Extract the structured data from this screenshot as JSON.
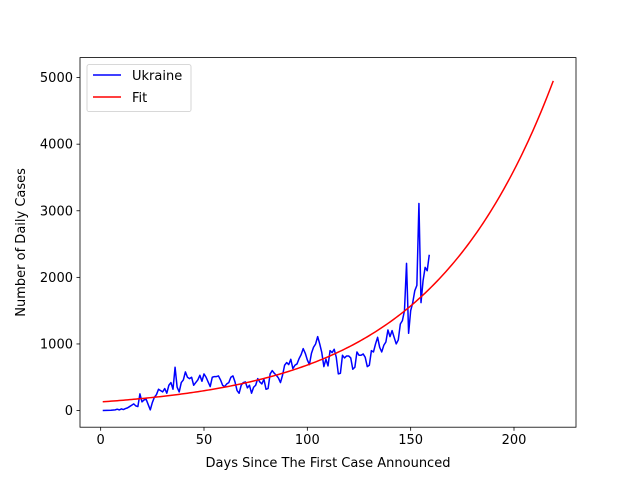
{
  "chart_data": {
    "type": "line",
    "title": "",
    "xlabel": "Days Since The First Case Announced",
    "ylabel": "Number of Daily Cases",
    "xlim": [
      -10,
      230
    ],
    "ylim": [
      -250,
      5300
    ],
    "xticks": [
      0,
      50,
      100,
      150,
      200
    ],
    "yticks": [
      0,
      1000,
      2000,
      3000,
      4000,
      5000
    ],
    "grid": false,
    "legend_position": "top-left",
    "series": [
      {
        "name": "Ukraine",
        "color": "#0000ff",
        "points": [
          [
            1,
            0
          ],
          [
            3,
            2
          ],
          [
            5,
            5
          ],
          [
            7,
            10
          ],
          [
            8,
            20
          ],
          [
            9,
            10
          ],
          [
            10,
            25
          ],
          [
            11,
            15
          ],
          [
            12,
            30
          ],
          [
            13,
            40
          ],
          [
            14,
            60
          ],
          [
            15,
            80
          ],
          [
            16,
            100
          ],
          [
            17,
            70
          ],
          [
            18,
            60
          ],
          [
            19,
            250
          ],
          [
            20,
            130
          ],
          [
            21,
            160
          ],
          [
            22,
            170
          ],
          [
            23,
            90
          ],
          [
            24,
            10
          ],
          [
            25,
            120
          ],
          [
            26,
            200
          ],
          [
            27,
            240
          ],
          [
            28,
            320
          ],
          [
            29,
            300
          ],
          [
            30,
            280
          ],
          [
            31,
            330
          ],
          [
            32,
            260
          ],
          [
            33,
            380
          ],
          [
            34,
            420
          ],
          [
            35,
            320
          ],
          [
            36,
            650
          ],
          [
            37,
            350
          ],
          [
            38,
            280
          ],
          [
            39,
            420
          ],
          [
            40,
            460
          ],
          [
            41,
            580
          ],
          [
            42,
            500
          ],
          [
            43,
            480
          ],
          [
            44,
            500
          ],
          [
            45,
            380
          ],
          [
            46,
            420
          ],
          [
            47,
            460
          ],
          [
            48,
            530
          ],
          [
            49,
            440
          ],
          [
            50,
            550
          ],
          [
            51,
            500
          ],
          [
            52,
            430
          ],
          [
            53,
            360
          ],
          [
            54,
            500
          ],
          [
            55,
            510
          ],
          [
            56,
            510
          ],
          [
            57,
            520
          ],
          [
            58,
            460
          ],
          [
            59,
            380
          ],
          [
            60,
            360
          ],
          [
            61,
            400
          ],
          [
            62,
            420
          ],
          [
            63,
            500
          ],
          [
            64,
            520
          ],
          [
            65,
            430
          ],
          [
            66,
            300
          ],
          [
            67,
            260
          ],
          [
            68,
            380
          ],
          [
            69,
            420
          ],
          [
            70,
            430
          ],
          [
            71,
            340
          ],
          [
            72,
            380
          ],
          [
            73,
            260
          ],
          [
            74,
            350
          ],
          [
            75,
            380
          ],
          [
            76,
            480
          ],
          [
            77,
            430
          ],
          [
            78,
            400
          ],
          [
            79,
            470
          ],
          [
            80,
            320
          ],
          [
            81,
            330
          ],
          [
            82,
            550
          ],
          [
            83,
            600
          ],
          [
            84,
            560
          ],
          [
            85,
            530
          ],
          [
            86,
            490
          ],
          [
            87,
            420
          ],
          [
            88,
            530
          ],
          [
            89,
            680
          ],
          [
            90,
            720
          ],
          [
            91,
            690
          ],
          [
            92,
            770
          ],
          [
            93,
            630
          ],
          [
            94,
            680
          ],
          [
            95,
            700
          ],
          [
            96,
            780
          ],
          [
            97,
            840
          ],
          [
            98,
            930
          ],
          [
            99,
            860
          ],
          [
            100,
            760
          ],
          [
            101,
            690
          ],
          [
            102,
            860
          ],
          [
            103,
            950
          ],
          [
            104,
            1000
          ],
          [
            105,
            1110
          ],
          [
            106,
            1000
          ],
          [
            107,
            870
          ],
          [
            108,
            660
          ],
          [
            109,
            770
          ],
          [
            110,
            670
          ],
          [
            111,
            900
          ],
          [
            112,
            870
          ],
          [
            113,
            920
          ],
          [
            114,
            800
          ],
          [
            115,
            550
          ],
          [
            116,
            560
          ],
          [
            117,
            830
          ],
          [
            118,
            790
          ],
          [
            119,
            820
          ],
          [
            120,
            820
          ],
          [
            121,
            790
          ],
          [
            122,
            620
          ],
          [
            123,
            650
          ],
          [
            124,
            880
          ],
          [
            125,
            830
          ],
          [
            126,
            830
          ],
          [
            127,
            850
          ],
          [
            128,
            800
          ],
          [
            129,
            660
          ],
          [
            130,
            680
          ],
          [
            131,
            900
          ],
          [
            132,
            880
          ],
          [
            133,
            1000
          ],
          [
            134,
            1100
          ],
          [
            135,
            950
          ],
          [
            136,
            880
          ],
          [
            137,
            980
          ],
          [
            138,
            1030
          ],
          [
            139,
            1210
          ],
          [
            140,
            1110
          ],
          [
            141,
            1200
          ],
          [
            142,
            1100
          ],
          [
            143,
            1000
          ],
          [
            144,
            1060
          ],
          [
            145,
            1300
          ],
          [
            146,
            1350
          ],
          [
            147,
            1500
          ],
          [
            148,
            2210
          ],
          [
            149,
            1160
          ],
          [
            150,
            1500
          ],
          [
            151,
            1620
          ],
          [
            152,
            1800
          ],
          [
            153,
            1880
          ],
          [
            154,
            3110
          ],
          [
            155,
            1620
          ],
          [
            156,
            1950
          ],
          [
            157,
            2150
          ],
          [
            158,
            2100
          ],
          [
            159,
            2340
          ]
        ]
      },
      {
        "name": "Fit",
        "color": "#ff0000",
        "model": {
          "a": 129.52,
          "b": 0.016637
        },
        "x_range": [
          1,
          219
        ],
        "points": [
          [
            1,
            131.7
          ],
          [
            20,
            180.5
          ],
          [
            40,
            251.4
          ],
          [
            60,
            350.2
          ],
          [
            80,
            487.8
          ],
          [
            100,
            679.4
          ],
          [
            120,
            946.3
          ],
          [
            140,
            1318.0
          ],
          [
            160,
            1835.8
          ],
          [
            180,
            2557.0
          ],
          [
            200,
            3561.5
          ],
          [
            219,
            4880.0
          ]
        ]
      }
    ]
  }
}
